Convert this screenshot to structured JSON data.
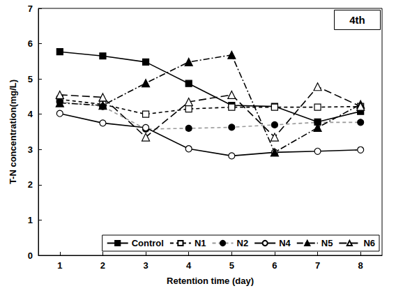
{
  "chart_data": {
    "type": "line",
    "annotation": "4th",
    "x_label": "Retention time (day)",
    "y_label": "T-N concentration(mg/L)",
    "x": [
      1,
      2,
      3,
      4,
      5,
      6,
      7,
      8
    ],
    "ylim": [
      0,
      7
    ],
    "yticks": [
      0,
      1,
      2,
      3,
      4,
      5,
      6,
      7
    ],
    "grid": false,
    "legend": "lower right",
    "series": [
      {
        "name": "Control",
        "color": "#000000",
        "marker": "filled_square",
        "line_style": "solid",
        "values": [
          5.77,
          5.65,
          5.48,
          4.87,
          4.25,
          4.22,
          3.78,
          4.08
        ]
      },
      {
        "name": "N1",
        "color": "#000000",
        "marker": "open_square",
        "line_style": "dashed",
        "values": [
          4.42,
          4.28,
          4.0,
          4.15,
          4.2,
          4.2,
          4.2,
          4.22
        ]
      },
      {
        "name": "N2",
        "color": "#999999",
        "marker": "filled_circle",
        "line_style": "dashed",
        "values": [
          4.35,
          4.22,
          3.58,
          3.6,
          3.63,
          3.7,
          3.77,
          3.77
        ]
      },
      {
        "name": "N4",
        "color": "#000000",
        "marker": "open_circle",
        "line_style": "solid",
        "values": [
          4.02,
          3.75,
          3.62,
          3.02,
          2.82,
          2.92,
          2.95,
          2.99
        ]
      },
      {
        "name": "N5",
        "color": "#000000",
        "marker": "filled_triangle",
        "line_style": "dash-dot",
        "values": [
          4.32,
          4.25,
          4.88,
          5.48,
          5.68,
          2.92,
          3.62,
          4.28
        ]
      },
      {
        "name": "N6",
        "color": "#000000",
        "marker": "open_triangle",
        "line_style": "long-dash",
        "values": [
          4.55,
          4.48,
          3.35,
          4.35,
          4.55,
          3.35,
          4.78,
          4.22
        ]
      }
    ]
  }
}
